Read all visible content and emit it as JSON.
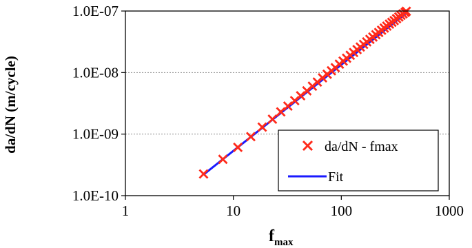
{
  "chart_data": {
    "type": "scatter",
    "xlabel": "f",
    "xlabel_subscript": "max",
    "ylabel": "da/dN (m/cycle)",
    "x_scale": "log",
    "y_scale": "log",
    "xlim": [
      1,
      1000
    ],
    "ylim": [
      1e-10,
      1e-07
    ],
    "x_ticks": [
      1,
      10,
      100,
      1000
    ],
    "x_tick_labels": [
      "1",
      "10",
      "100",
      "1000"
    ],
    "y_ticks": [
      1e-10,
      1e-09,
      1e-08,
      1e-07
    ],
    "y_tick_labels": [
      "1.0E-10",
      "1.0E-09",
      "1.0E-08",
      "1.0E-07"
    ],
    "grid": "horizontal dashed",
    "legend_position": "bottom-right",
    "series": [
      {
        "name": "da/dN - fmax",
        "type": "scatter",
        "marker": "x",
        "color": "#ff2a1a",
        "x": [
          5.3,
          8.0,
          11.0,
          14.5,
          18.5,
          23.0,
          27.5,
          32.0,
          37.0,
          42.0,
          48.0,
          54.0,
          60.0,
          67.0,
          74.0,
          81.0,
          88.0,
          96.0,
          104.0,
          112.0,
          121.0,
          130.0,
          140.0,
          150.0,
          161.0,
          172.0,
          184.0,
          196.0,
          209.0,
          222.0,
          236.0,
          250.0,
          264.0,
          279.0,
          294.0,
          309.0,
          325.0,
          341.0,
          357.0,
          373.0,
          390.0,
          400.0
        ],
        "y": [
          2.25e-10,
          3.9e-10,
          6.1e-10,
          9.1e-10,
          1.3e-09,
          1.75e-09,
          2.3e-09,
          2.85e-09,
          3.5e-09,
          4.2e-09,
          5.05e-09,
          6e-09,
          7e-09,
          8.2e-09,
          9.4e-09,
          1.07e-08,
          1.2e-08,
          1.37e-08,
          1.54e-08,
          1.71e-08,
          1.91e-08,
          2.12e-08,
          2.36e-08,
          2.6e-08,
          2.87e-08,
          3.15e-08,
          3.46e-08,
          3.78e-08,
          4.12e-08,
          4.48e-08,
          4.88e-08,
          5.28e-08,
          5.68e-08,
          6.12e-08,
          6.56e-08,
          7e-08,
          7.5e-08,
          8e-08,
          8.5e-08,
          9e-08,
          9.5e-08,
          9.9e-08
        ]
      },
      {
        "name": "Fit",
        "type": "line",
        "color": "#1a1aff",
        "x": [
          5.3,
          400
        ],
        "y": [
          2.2e-10,
          9.3e-08
        ]
      }
    ]
  }
}
